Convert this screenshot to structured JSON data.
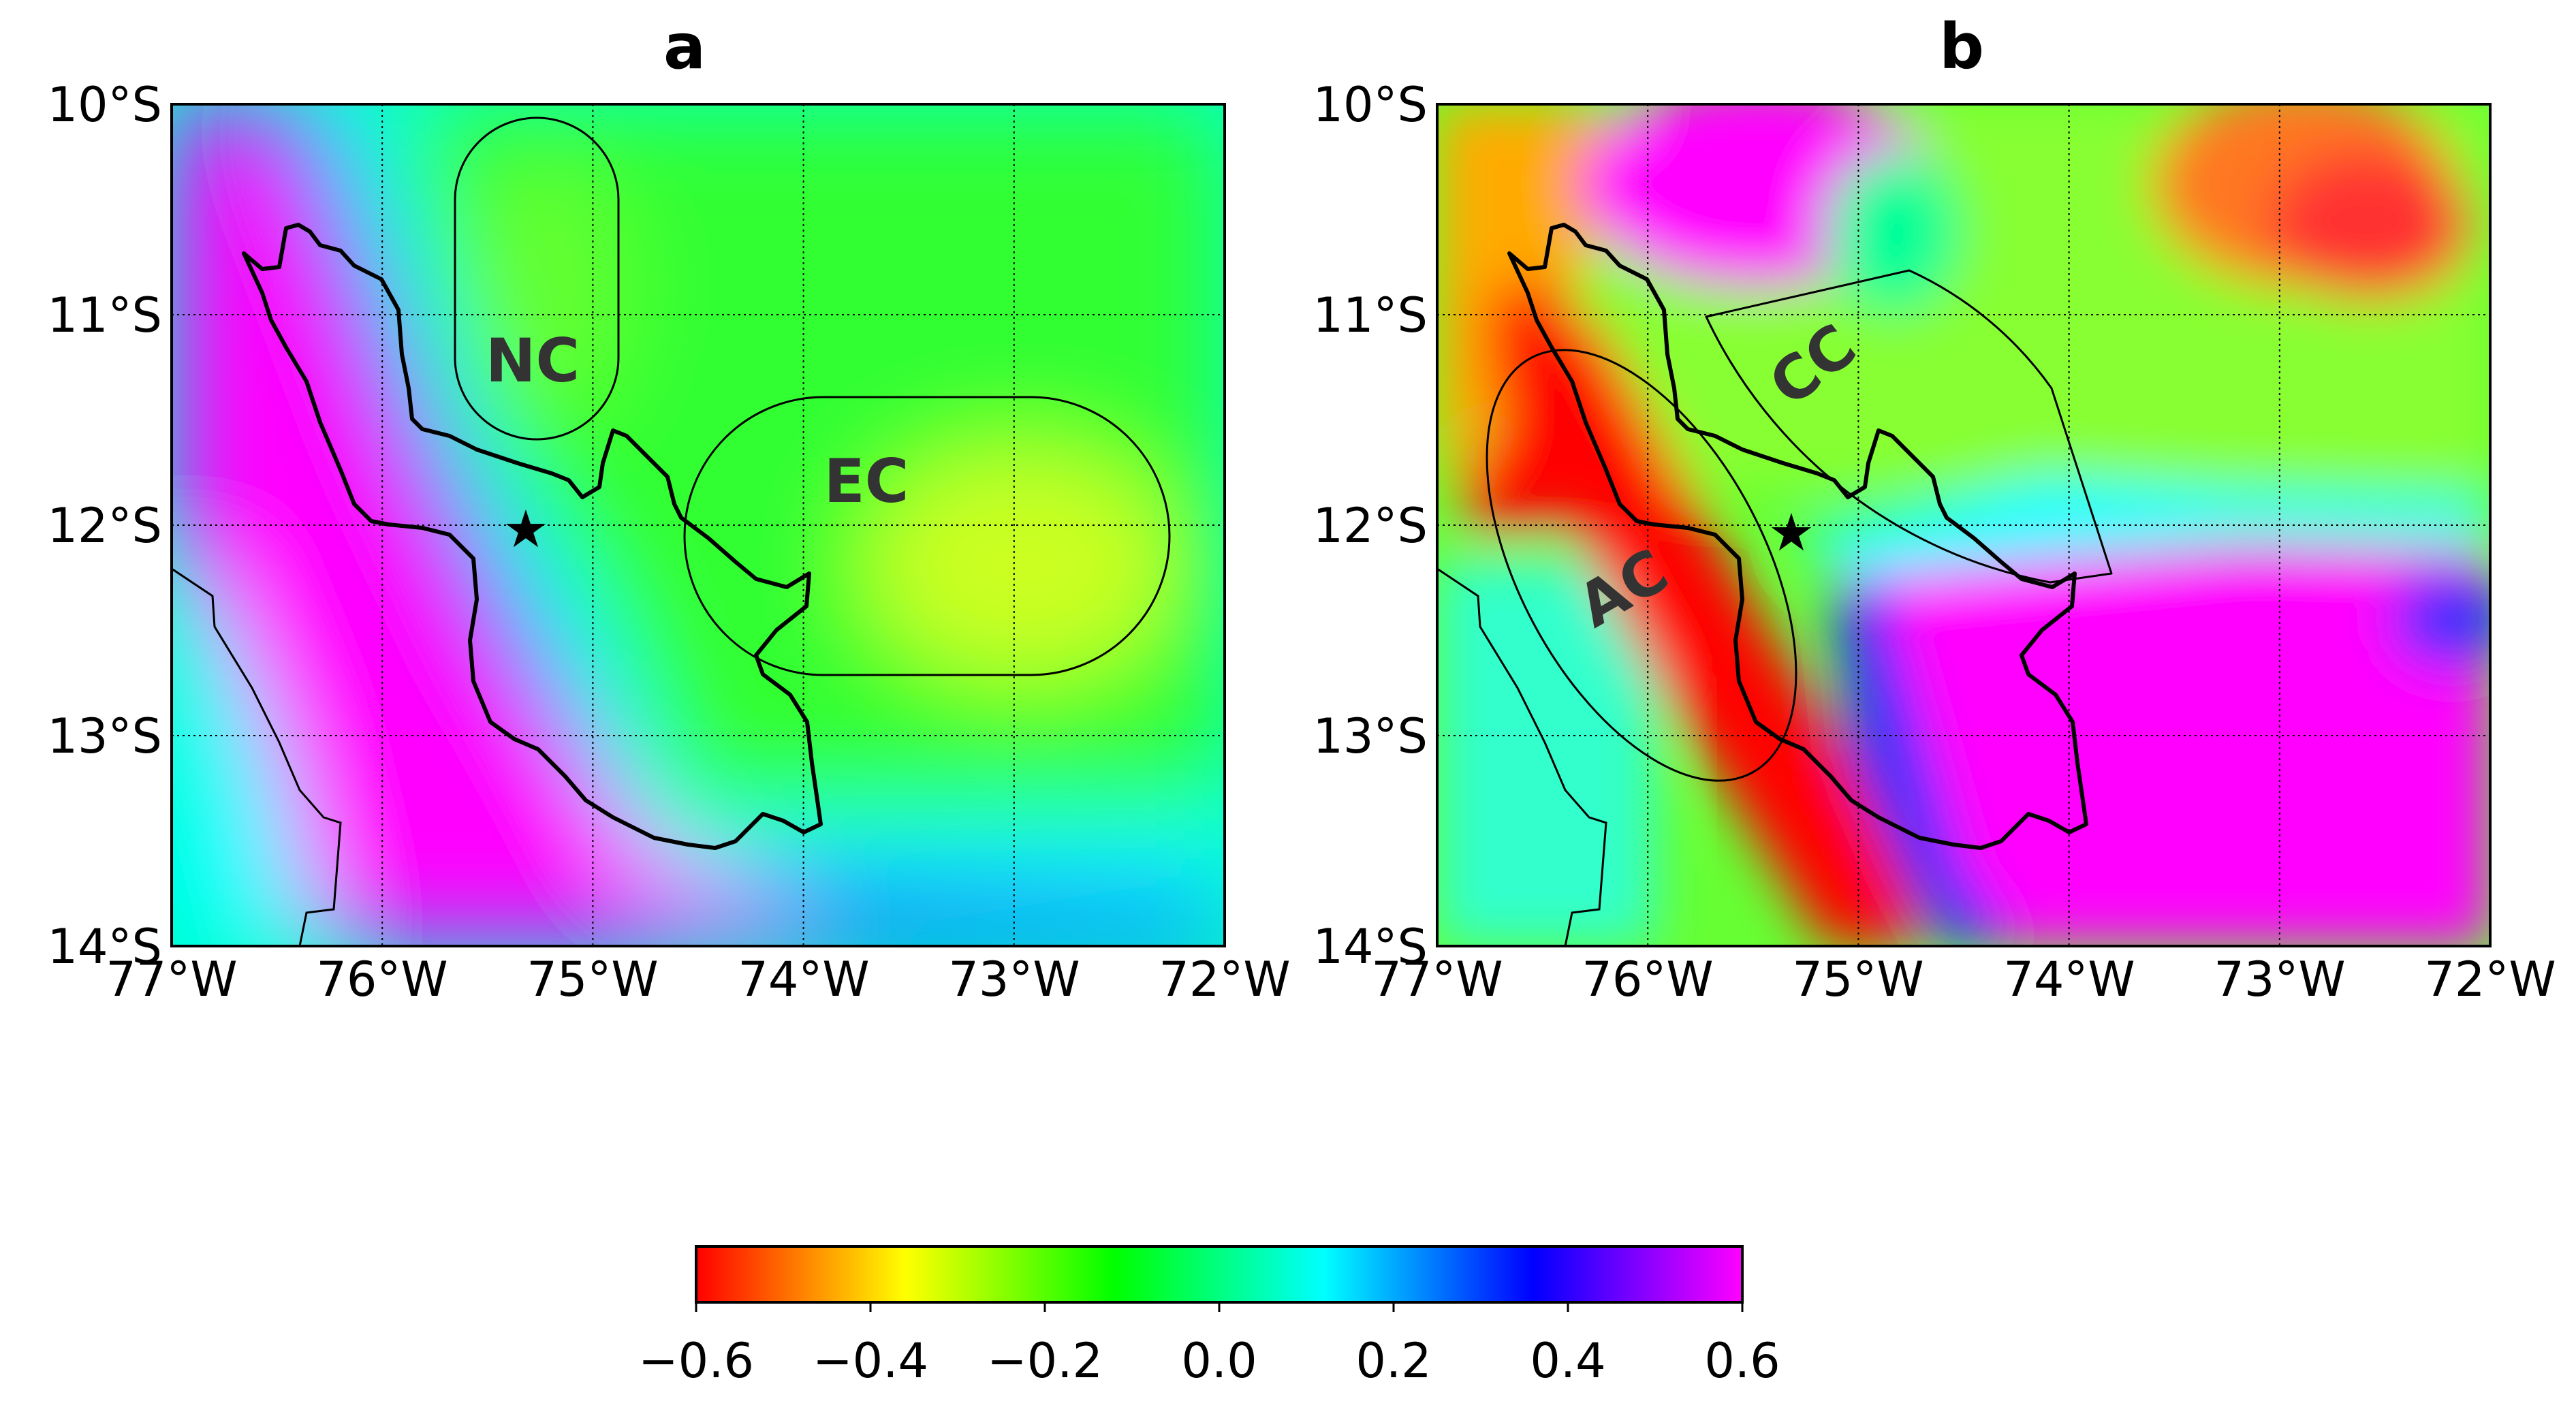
{
  "panels": [
    {
      "id": "a",
      "title": "a",
      "lat_ticks": [
        "10°S",
        "11°S",
        "12°S",
        "13°S",
        "14°S"
      ],
      "lon_ticks": [
        "77°W",
        "76°W",
        "75°W",
        "74°W",
        "73°W",
        "72°W"
      ],
      "region_labels": [
        {
          "name": "NC",
          "lon": -75.3,
          "lat": -11.2
        },
        {
          "name": "EC",
          "lon": -73.7,
          "lat": -11.8
        }
      ],
      "station": {
        "lon": -75.32,
        "lat": -12.04
      }
    },
    {
      "id": "b",
      "title": "b",
      "lat_ticks": [
        "10°S",
        "11°S",
        "12°S",
        "13°S",
        "14°S"
      ],
      "lon_ticks": [
        "77°W",
        "76°W",
        "75°W",
        "74°W",
        "73°W",
        "72°W"
      ],
      "region_labels": [
        {
          "name": "CC",
          "lon": -75.05,
          "lat": -11.2
        },
        {
          "name": "AC",
          "lon": -76.05,
          "lat": -12.25
        }
      ],
      "station": {
        "lon": -75.32,
        "lat": -12.04
      }
    }
  ],
  "map_extent": {
    "lon": [
      -77,
      -72
    ],
    "lat": [
      -14,
      -10
    ]
  },
  "colorbar": {
    "ticks": [
      "−0.6",
      "−0.4",
      "−0.2",
      "0.0",
      "0.2",
      "0.4",
      "0.6"
    ],
    "range": [
      -0.6,
      0.6
    ],
    "colors": [
      "#ff0000",
      "#ff8000",
      "#ffff00",
      "#80ff00",
      "#00ff00",
      "#00ff80",
      "#00ffff",
      "#0080ff",
      "#0000ff",
      "#8000ff",
      "#ff00ff"
    ]
  },
  "colors": {
    "outline": "#000000",
    "magenta": "#ff00ff",
    "blue": "#0000ff",
    "cyan": "#00ffff",
    "green": "#00ff00",
    "yellow": "#ffff00",
    "red": "#ff0000",
    "label_text": "#333333"
  }
}
